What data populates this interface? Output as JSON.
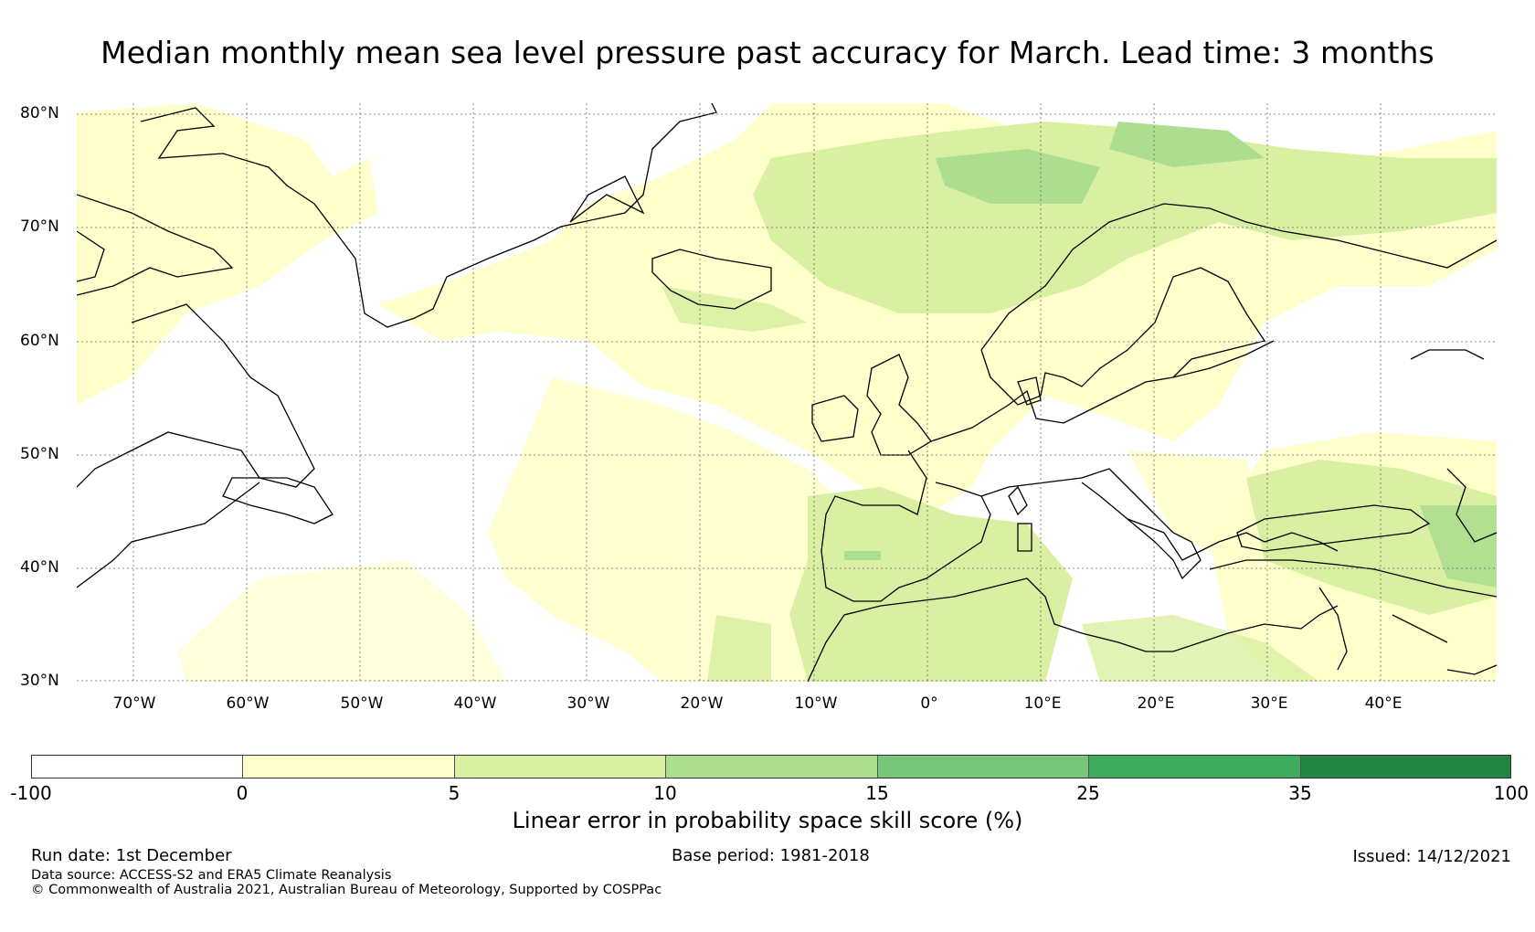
{
  "title": "Median monthly mean sea level pressure past accuracy for March. Lead time: 3 months",
  "map": {
    "lat_labels": [
      "80°N",
      "70°N",
      "60°N",
      "50°N",
      "40°N",
      "30°N"
    ],
    "lon_labels": [
      "70°W",
      "60°W",
      "50°W",
      "40°W",
      "30°W",
      "20°W",
      "10°W",
      "0°",
      "10°E",
      "20°E",
      "30°E",
      "40°E"
    ],
    "extent": {
      "lon_min": -75,
      "lon_max": 50,
      "lat_min": 30,
      "lat_max": 81
    }
  },
  "colorbar": {
    "ticks": [
      "-100",
      "0",
      "5",
      "10",
      "15",
      "25",
      "35",
      "100"
    ],
    "colors": [
      "#ffffff",
      "#ffffcc",
      "#d9f0a3",
      "#addd8e",
      "#78c679",
      "#41ab5d",
      "#238443"
    ],
    "label": "Linear error in probability space skill score (%)"
  },
  "footer": {
    "run_date": "Run date: 1st December",
    "base_period": "Base period: 1981-2018",
    "issued": "Issued: 14/12/2021",
    "data_source": "Data source: ACCESS-S2 and ERA5 Climate Reanalysis",
    "copyright": "© Commonwealth of Australia 2021, Australian Bureau of Meteorology, Supported by COSPPac"
  }
}
